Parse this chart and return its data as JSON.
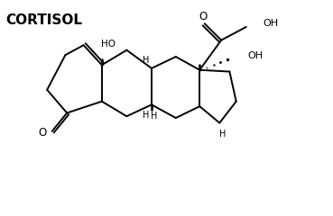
{
  "title": "CORTISOL",
  "background_color": "#ffffff",
  "line_color": "#000000",
  "line_width": 1.4,
  "font_color": "#000000",
  "title_fontsize": 11,
  "label_fontsize": 7.0,
  "xlim": [
    0,
    10
  ],
  "ylim": [
    0,
    6
  ],
  "figsize": [
    3.69,
    2.4
  ],
  "dpi": 100
}
